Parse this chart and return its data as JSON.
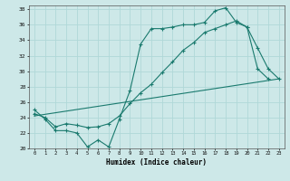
{
  "xlabel": "Humidex (Indice chaleur)",
  "bg_color": "#cde8e8",
  "line_color": "#1a7a6e",
  "grid_color": "#b0d8d8",
  "xlim": [
    -0.5,
    23.5
  ],
  "ylim": [
    20,
    38.5
  ],
  "yticks": [
    20,
    22,
    24,
    26,
    28,
    30,
    32,
    34,
    36,
    38
  ],
  "xticks": [
    0,
    1,
    2,
    3,
    4,
    5,
    6,
    7,
    8,
    9,
    10,
    11,
    12,
    13,
    14,
    15,
    16,
    17,
    18,
    19,
    20,
    21,
    22,
    23
  ],
  "series1_x": [
    0,
    1,
    2,
    3,
    4,
    5,
    6,
    7,
    8,
    9,
    10,
    11,
    12,
    13,
    14,
    15,
    16,
    17,
    18,
    19,
    20,
    21,
    22
  ],
  "series1_y": [
    25.0,
    23.8,
    22.3,
    22.3,
    22.0,
    20.2,
    21.1,
    20.2,
    23.8,
    27.5,
    33.5,
    35.5,
    35.5,
    35.7,
    36.0,
    36.0,
    36.3,
    37.8,
    38.2,
    36.3,
    35.7,
    30.3,
    29.0
  ],
  "series2_x": [
    0,
    1,
    2,
    3,
    4,
    5,
    6,
    7,
    8,
    9,
    10,
    11,
    12,
    13,
    14,
    15,
    16,
    17,
    18,
    19,
    20,
    21,
    22,
    23
  ],
  "series2_y": [
    24.5,
    24.0,
    22.8,
    23.2,
    23.0,
    22.7,
    22.8,
    23.2,
    24.2,
    25.8,
    27.2,
    28.3,
    29.8,
    31.2,
    32.7,
    33.7,
    35.0,
    35.5,
    36.0,
    36.5,
    35.7,
    33.0,
    30.3,
    29.0
  ],
  "series3_x": [
    0,
    23
  ],
  "series3_y": [
    24.2,
    29.0
  ]
}
